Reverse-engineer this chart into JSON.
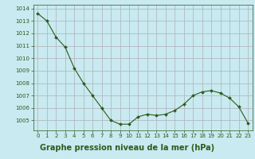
{
  "x": [
    0,
    1,
    2,
    3,
    4,
    5,
    6,
    7,
    8,
    9,
    10,
    11,
    12,
    13,
    14,
    15,
    16,
    17,
    18,
    19,
    20,
    21,
    22,
    23
  ],
  "y": [
    1013.6,
    1013.0,
    1011.7,
    1010.9,
    1009.2,
    1008.0,
    1007.0,
    1006.0,
    1005.0,
    1004.7,
    1004.7,
    1005.3,
    1005.5,
    1005.4,
    1005.5,
    1005.8,
    1006.3,
    1007.0,
    1007.3,
    1007.4,
    1007.2,
    1006.8,
    1006.1,
    1004.8
  ],
  "line_color": "#2d5a1b",
  "marker_color": "#2d5a1b",
  "bg_color": "#c8eaf0",
  "grid_major_color": "#b0b0b8",
  "grid_minor_color": "#d8d0d8",
  "xlabel": "Graphe pression niveau de la mer (hPa)",
  "xlabel_color": "#2d5a1b",
  "xlabel_bg": "#80bb80",
  "ylim_min": 1004.2,
  "ylim_max": 1014.3,
  "yticks": [
    1005,
    1006,
    1007,
    1008,
    1009,
    1010,
    1011,
    1012,
    1013,
    1014
  ],
  "xticks": [
    0,
    1,
    2,
    3,
    4,
    5,
    6,
    7,
    8,
    9,
    10,
    11,
    12,
    13,
    14,
    15,
    16,
    17,
    18,
    19,
    20,
    21,
    22,
    23
  ],
  "tick_color": "#2d5a1b",
  "tick_fontsize": 5.0,
  "xlabel_fontsize": 7.0,
  "marker_size": 2.0,
  "line_width": 0.8
}
